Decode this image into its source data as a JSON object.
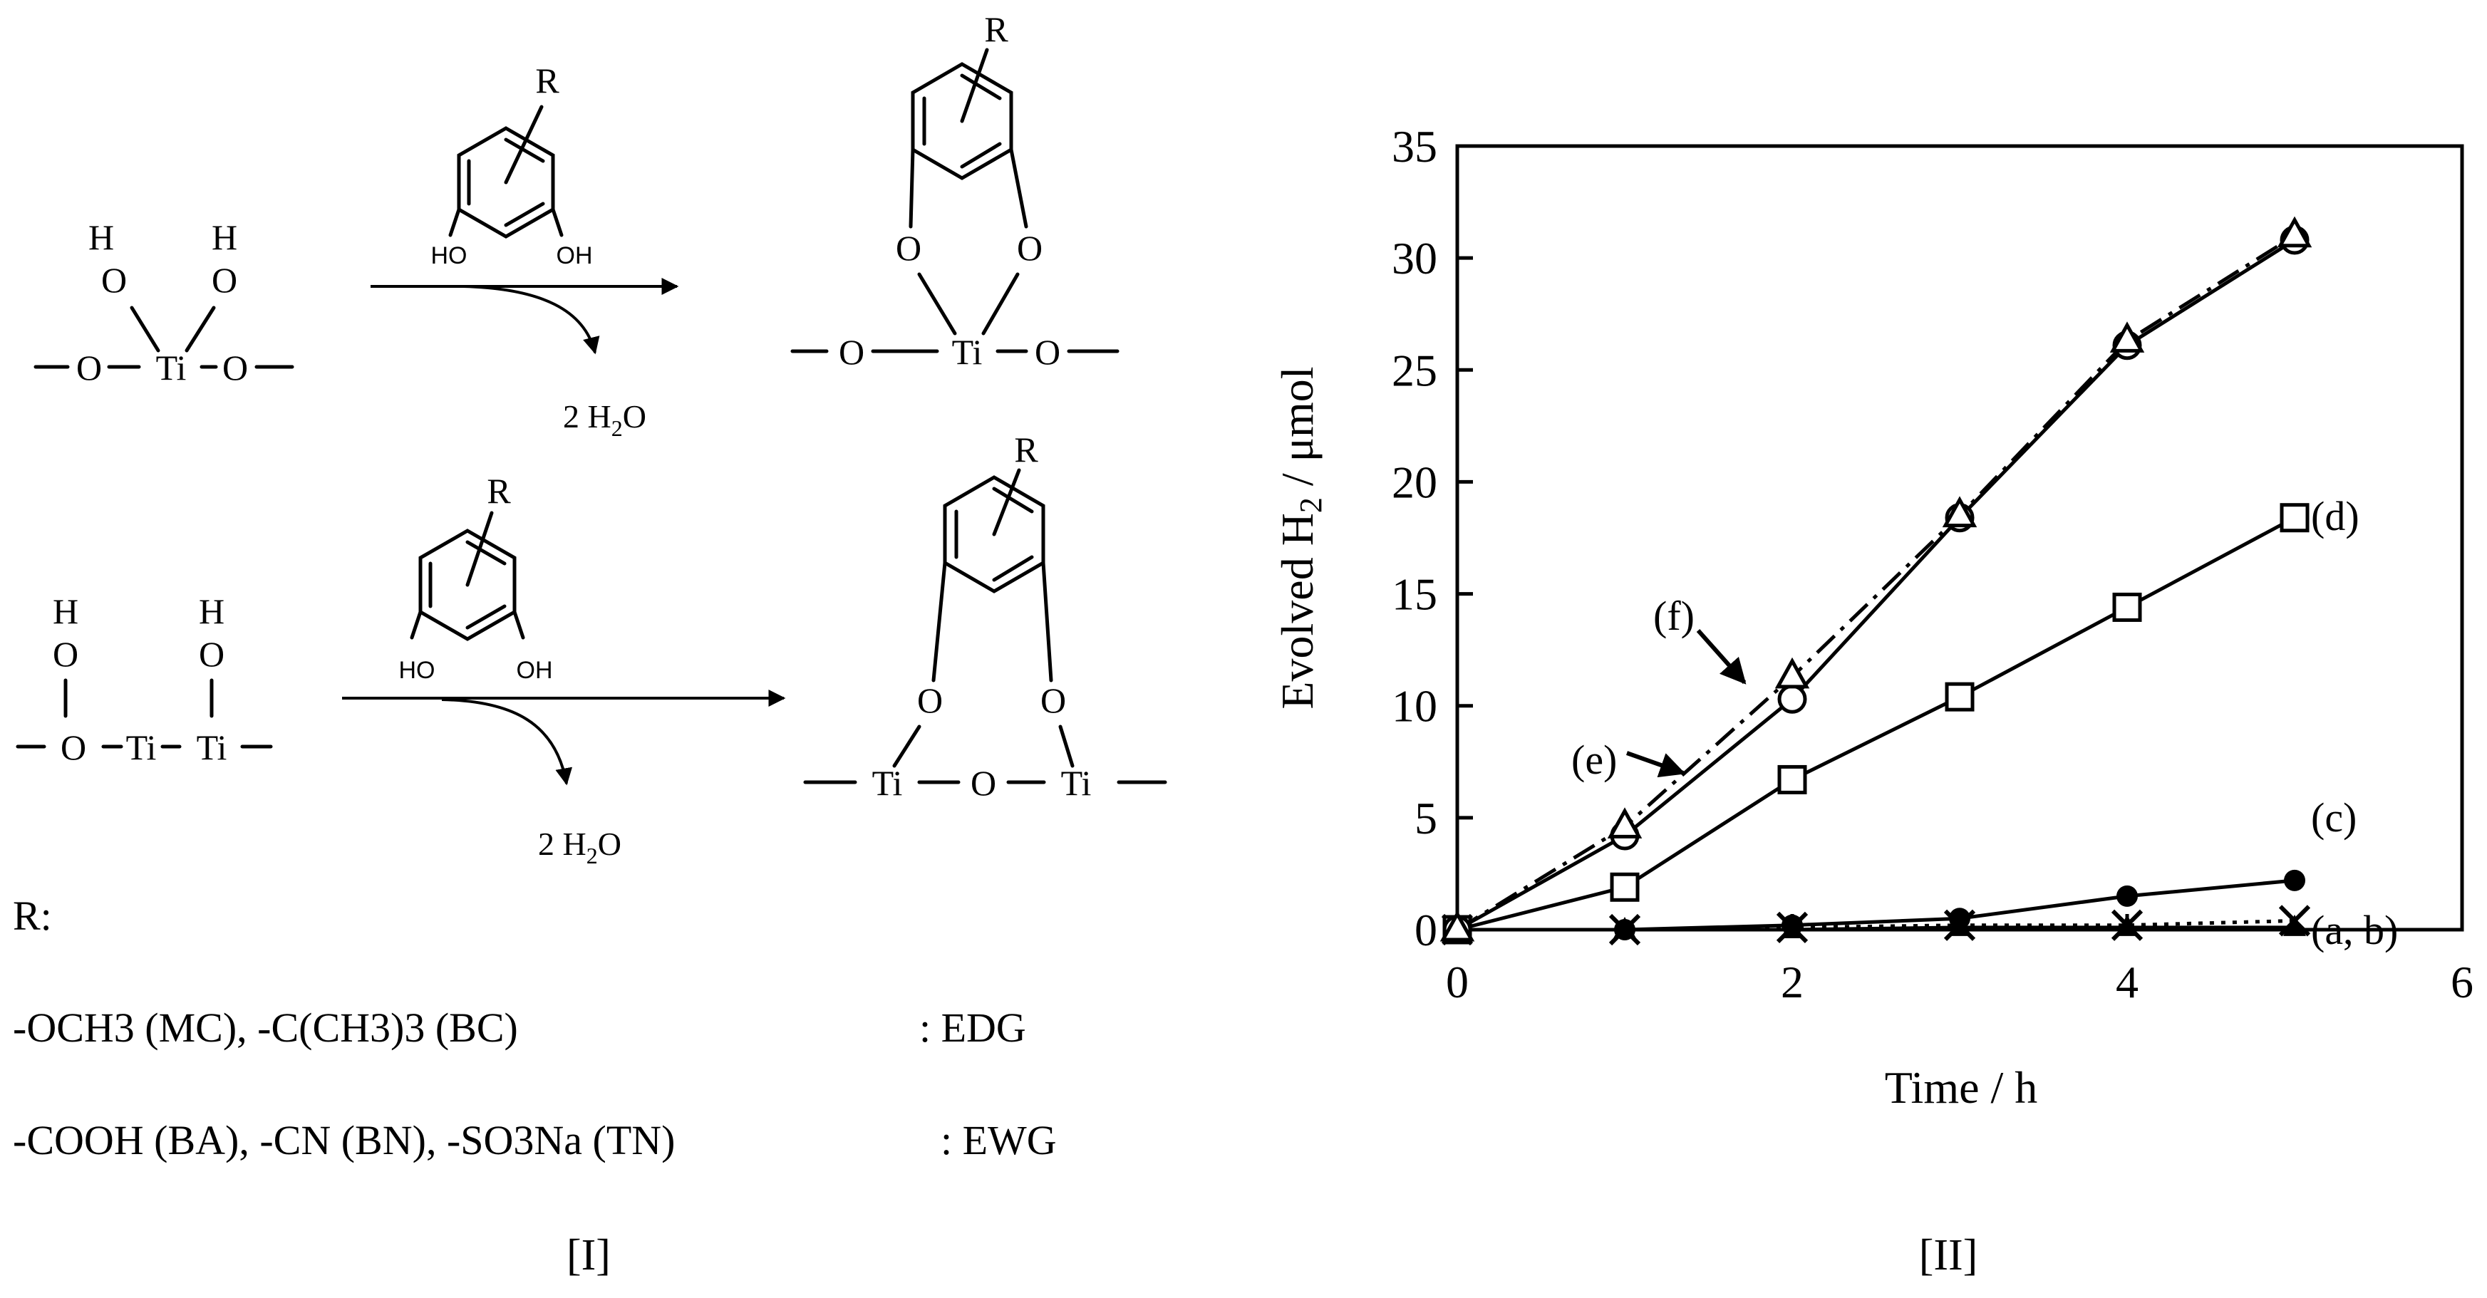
{
  "scheme": {
    "label": "[I]",
    "reaction1": {
      "reactant_atoms": [
        "H",
        "H",
        "O",
        "O",
        "O",
        "Ti",
        "O"
      ],
      "catechol": {
        "substituent": "R",
        "hydroxyls": [
          "HO",
          "OH"
        ]
      },
      "byproduct": "2 H2O",
      "product_atoms": [
        "R",
        "O",
        "O",
        "O",
        "Ti",
        "O"
      ]
    },
    "reaction2": {
      "reactant_atoms": [
        "H",
        "H",
        "O",
        "O",
        "Ti",
        "O",
        "Ti"
      ],
      "catechol": {
        "substituent": "R",
        "hydroxyls": [
          "HO",
          "OH"
        ]
      },
      "byproduct": "2 H2O",
      "product_atoms": [
        "R",
        "O",
        "O",
        "Ti",
        "O",
        "Ti"
      ]
    },
    "r_heading": "R:",
    "edg_line": "-OCH3 (MC), -C(CH3)3 (BC)",
    "edg_tag": ":  EDG",
    "ewg_line": "-COOH (BA), -CN (BN), -SO3Na (TN)",
    "ewg_tag": ":  EWG"
  },
  "chart_data": {
    "type": "line",
    "panel_label": "[II]",
    "xlabel": "Time / h",
    "ylabel": "Evolved H2 / μmol",
    "xlim": [
      0,
      6
    ],
    "ylim": [
      0,
      35
    ],
    "xticks": [
      0,
      2,
      4,
      6
    ],
    "yticks": [
      0,
      5,
      10,
      15,
      20,
      25,
      30,
      35
    ],
    "grid": false,
    "legend": "none",
    "series": [
      {
        "name": "(a, b)",
        "marker": "x",
        "line": "dotted",
        "x": [
          0,
          1,
          2,
          3,
          4,
          5
        ],
        "y": [
          0,
          0,
          0.1,
          0.2,
          0.2,
          0.4
        ]
      },
      {
        "name": "(a, b)",
        "marker": "filled-triangle",
        "line": "solid",
        "x": [
          0,
          1,
          2,
          3,
          4,
          5
        ],
        "y": [
          0,
          0,
          0,
          0.1,
          0.1,
          0.1
        ]
      },
      {
        "name": "(c)",
        "marker": "filled-circle",
        "line": "solid",
        "x": [
          0,
          1,
          2,
          3,
          4,
          5
        ],
        "y": [
          0,
          0,
          0.2,
          0.5,
          1.5,
          2.2
        ]
      },
      {
        "name": "(d)",
        "marker": "open-square",
        "line": "solid",
        "x": [
          0,
          1,
          2,
          3,
          4,
          5
        ],
        "y": [
          0,
          1.9,
          6.7,
          10.4,
          14.4,
          18.4
        ]
      },
      {
        "name": "(e)",
        "marker": "open-circle",
        "line": "solid",
        "x": [
          0,
          1,
          2,
          3,
          4,
          5
        ],
        "y": [
          0,
          4.2,
          10.3,
          18.4,
          26.1,
          30.8
        ]
      },
      {
        "name": "(f)",
        "marker": "open-triangle",
        "line": "dash-dot",
        "x": [
          0,
          1,
          2,
          3,
          4,
          5
        ],
        "y": [
          0,
          4.6,
          11.3,
          18.5,
          26.3,
          31.0
        ]
      }
    ],
    "annotations": [
      "(a, b)",
      "(c)",
      "(d)",
      "(e)",
      "(f)"
    ]
  }
}
